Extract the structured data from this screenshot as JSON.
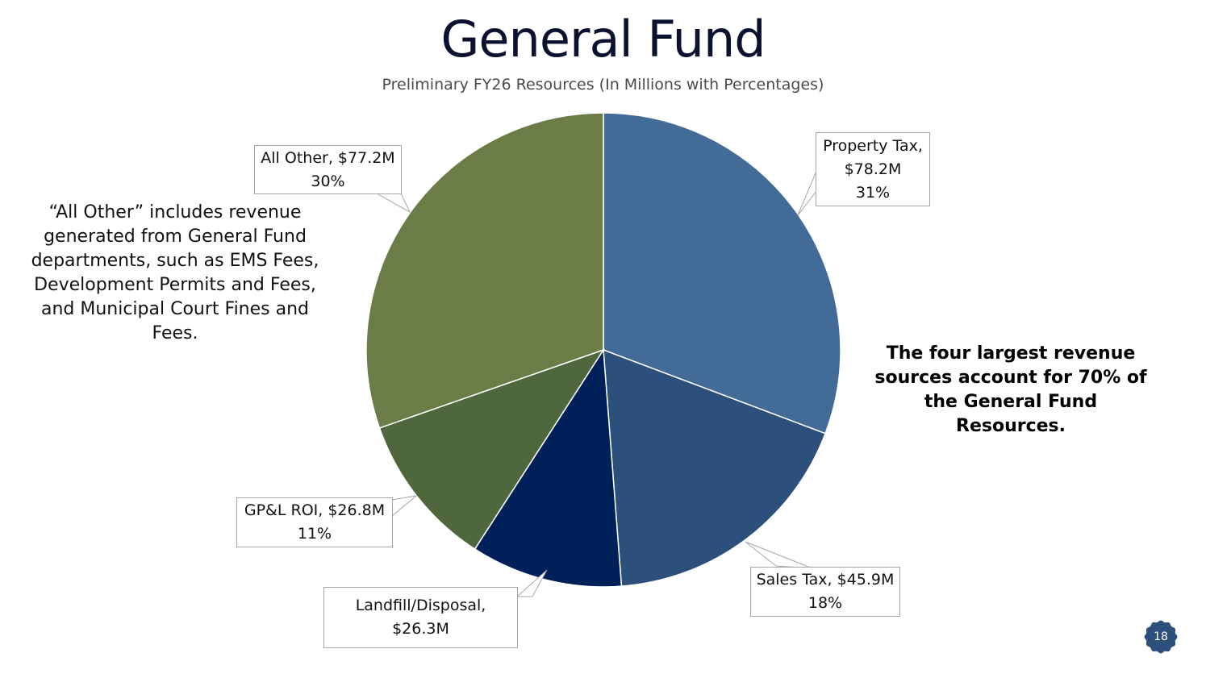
{
  "chart_data": {
    "type": "pie",
    "title": "General Fund",
    "subtitle": "Preliminary FY26 Resources (In Millions with Percentages)",
    "slices": [
      {
        "name": "Property Tax",
        "value": 78.2,
        "value_label": "$78.2M",
        "percent_label": "31%",
        "color": "#426b98"
      },
      {
        "name": "Sales Tax",
        "value": 45.9,
        "value_label": "$45.9M",
        "percent_label": "18%",
        "color": "#2c507b"
      },
      {
        "name": "Landfill/Disposal",
        "value": 26.3,
        "value_label": "$26.3M",
        "percent_label": "",
        "color": "#00205a"
      },
      {
        "name": "GP&L ROI",
        "value": 26.8,
        "value_label": "$26.8M",
        "percent_label": "11%",
        "color": "#4f673c"
      },
      {
        "name": "All Other",
        "value": 77.2,
        "value_label": "$77.2M",
        "percent_label": "30%",
        "color": "#6b7c46"
      }
    ]
  },
  "labels": {
    "property_tax": {
      "line1": "Property Tax,",
      "line2": "$78.2M",
      "line3": "31%"
    },
    "sales_tax": {
      "line1": "Sales Tax, $45.9M",
      "line2": "18%"
    },
    "landfill": {
      "line1": "Landfill/Disposal,",
      "line2": "$26.3M"
    },
    "gpl_roi": {
      "line1": "GP&L ROI, $26.8M",
      "line2": "11%"
    },
    "all_other": {
      "line1": "All Other, $77.2M",
      "line2": "30%"
    }
  },
  "notes": {
    "all_other_explanation": "“All Other” includes revenue generated from General Fund departments, such as EMS Fees, Development Permits and Fees, and Municipal Court Fines and Fees.",
    "summary": "The four largest revenue sources account for 70% of the General Fund Resources."
  },
  "page_number": "18",
  "colors": {
    "title": "#0a1230",
    "badge": "#2c507b"
  }
}
